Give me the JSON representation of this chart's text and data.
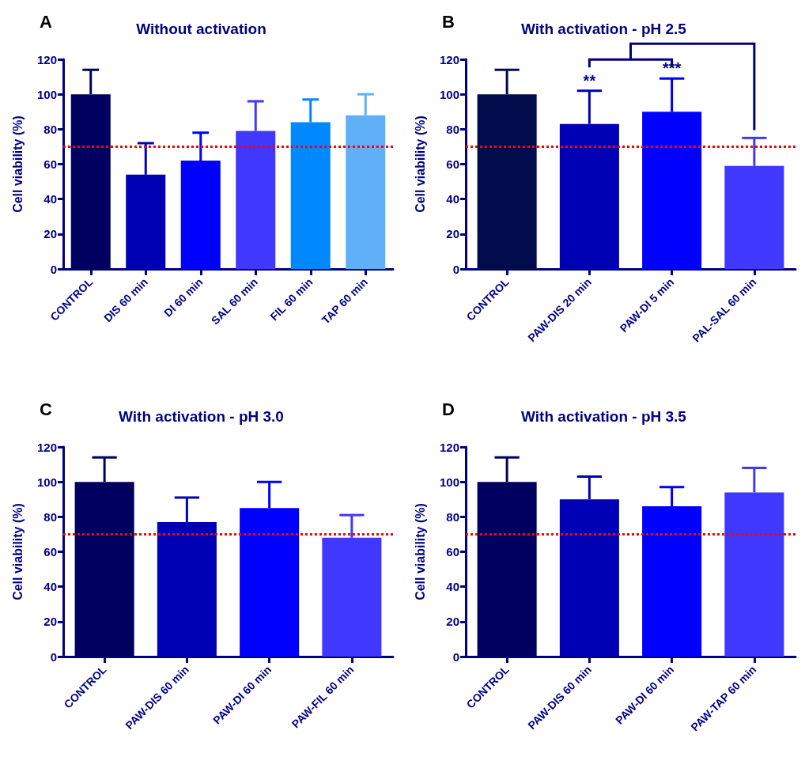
{
  "chart_data": [
    {
      "type": "bar",
      "title": "Without activation",
      "ylabel": "Cell viability (%)",
      "annotations": [
        "A"
      ],
      "categories": [
        "CONTROL",
        "DIS 60 min",
        "DI 60 min",
        "SAL 60 min",
        "FIL 60 min",
        "TAP 60 min"
      ],
      "values": [
        100,
        54,
        62,
        79,
        84,
        88
      ],
      "errors": [
        [
          100,
          114
        ],
        [
          54,
          72
        ],
        [
          62,
          78
        ],
        [
          79,
          96
        ],
        [
          84,
          97
        ],
        [
          88,
          100
        ]
      ],
      "colors": [
        "#000060",
        "#0000b4",
        "#0000ff",
        "#4038ff",
        "#0088ff",
        "#60b0f8"
      ],
      "ylim": [
        0,
        120
      ],
      "yticks": [
        0,
        20,
        40,
        60,
        80,
        100,
        120
      ],
      "grid": false,
      "ref_lines": [
        {
          "axis": "y",
          "value": 70,
          "label": null,
          "color": "#ff0000",
          "line_style": "dotted"
        }
      ]
    },
    {
      "type": "bar",
      "title": "With activation - pH 2.5",
      "ylabel": "Cell viability (%)",
      "annotations": [
        "B",
        {
          "text": "**",
          "x": "PAW-DIS 20 min",
          "y": 102
        },
        {
          "text": "***",
          "x": "PAW-DI 5 min",
          "y": 109
        }
      ],
      "categories": [
        "CONTROL",
        "PAW-DIS 20 min",
        "PAW-DI 5 min",
        "PAL-SAL 60 min"
      ],
      "values": [
        100,
        83,
        90,
        59
      ],
      "errors": [
        [
          100,
          114
        ],
        [
          83,
          102
        ],
        [
          90,
          109
        ],
        [
          59,
          75
        ]
      ],
      "colors": [
        "#000c4c",
        "#0000b4",
        "#0000ff",
        "#4038ff"
      ],
      "ylim": [
        0,
        120
      ],
      "yticks": [
        0,
        20,
        40,
        60,
        80,
        100,
        120
      ],
      "grid": false,
      "ref_lines": [
        {
          "axis": "y",
          "value": 70,
          "label": null,
          "color": "#ff0000",
          "line_style": "dotted"
        }
      ]
    },
    {
      "type": "bar",
      "title": "With activation - pH 3.0",
      "ylabel": "Cell viability (%)",
      "annotations": [
        "C"
      ],
      "categories": [
        "CONTROL",
        "PAW-DIS 60 min",
        "PAW-DI 60 min",
        "PAW-FIL 60 min"
      ],
      "values": [
        100,
        77,
        85,
        68
      ],
      "errors": [
        [
          100,
          114
        ],
        [
          77,
          91
        ],
        [
          85,
          100
        ],
        [
          68,
          81
        ]
      ],
      "colors": [
        "#000060",
        "#0000b4",
        "#0000ff",
        "#4038ff"
      ],
      "ylim": [
        0,
        120
      ],
      "yticks": [
        0,
        20,
        40,
        60,
        80,
        100,
        120
      ],
      "grid": false,
      "ref_lines": [
        {
          "axis": "y",
          "value": 70,
          "label": null,
          "color": "#ff0000",
          "line_style": "dotted"
        }
      ]
    },
    {
      "type": "bar",
      "title": "With activation - pH 3.5",
      "ylabel": "Cell viability (%)",
      "annotations": [
        "D"
      ],
      "categories": [
        "CONTROL",
        "PAW-DIS 60 min",
        "PAW-DI 60 min",
        "PAW-TAP 60 min"
      ],
      "values": [
        100,
        90,
        86,
        94
      ],
      "errors": [
        [
          100,
          114
        ],
        [
          90,
          103
        ],
        [
          86,
          97
        ],
        [
          94,
          108
        ]
      ],
      "colors": [
        "#000060",
        "#0000b4",
        "#0000ff",
        "#4038ff"
      ],
      "ylim": [
        0,
        120
      ],
      "yticks": [
        0,
        20,
        40,
        60,
        80,
        100,
        120
      ],
      "grid": false,
      "ref_lines": [
        {
          "axis": "y",
          "value": 70,
          "label": null,
          "color": "#ff0000",
          "line_style": "dotted"
        }
      ]
    }
  ]
}
